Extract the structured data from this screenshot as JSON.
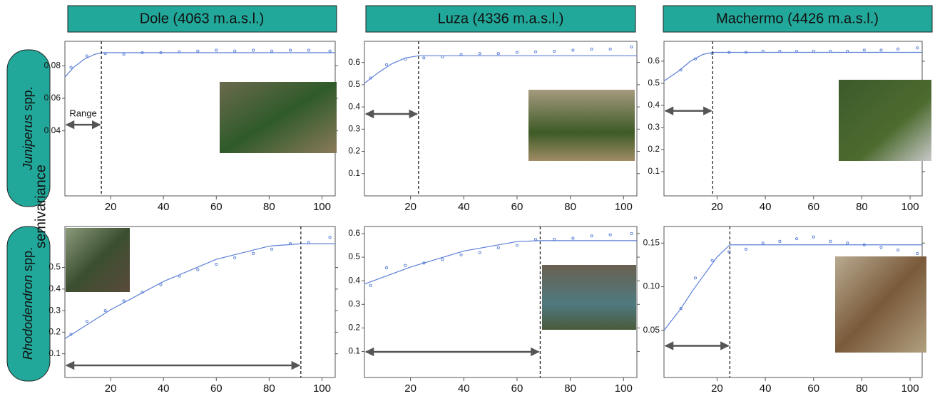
{
  "headers": [
    "Dole (4063 m.a.s.l.)",
    "Luza (4336 m.a.s.l.)",
    "Machermo (4426 m.a.s.l.)"
  ],
  "row_labels": [
    {
      "genus": "Juniperus",
      "rest": "spp."
    },
    {
      "genus": "Rhododendron",
      "rest": "spp."
    }
  ],
  "y_label": "semivariance",
  "chart_data": [
    {
      "type": "semivariogram",
      "annotation": "Range",
      "range": 16.5,
      "x": [
        5,
        11,
        18,
        25,
        32,
        39,
        46,
        53,
        60,
        67,
        74,
        81,
        88,
        95,
        103
      ],
      "values": [
        0.079,
        0.086,
        0.0875,
        0.087,
        0.088,
        0.088,
        0.0885,
        0.089,
        0.0895,
        0.089,
        0.0895,
        0.089,
        0.0895,
        0.0895,
        0.089
      ],
      "fit_x": [
        2.7,
        6,
        10,
        14,
        16.5,
        105
      ],
      "fit_values": [
        0.073,
        0.079,
        0.084,
        0.087,
        0.088,
        0.088
      ],
      "xlim": [
        2.7,
        105
      ],
      "ylim": [
        0,
        0.095
      ],
      "xticks": [
        20,
        40,
        60,
        80,
        100
      ],
      "yticks": [
        0.04,
        0.06,
        0.08
      ],
      "color": "#5b7fd6"
    },
    {
      "type": "semivariogram",
      "range": 23,
      "x": [
        5,
        11,
        18,
        25,
        32,
        39,
        46,
        53,
        60,
        67,
        74,
        81,
        88,
        95,
        103
      ],
      "values": [
        0.53,
        0.59,
        0.615,
        0.62,
        0.625,
        0.635,
        0.64,
        0.64,
        0.645,
        0.648,
        0.65,
        0.655,
        0.66,
        0.66,
        0.67
      ],
      "fit_x": [
        2.7,
        8,
        13,
        18,
        23,
        105
      ],
      "fit_values": [
        0.506,
        0.555,
        0.594,
        0.62,
        0.63,
        0.63
      ],
      "xlim": [
        2.7,
        105
      ],
      "ylim": [
        0,
        0.695
      ],
      "xticks": [
        20,
        40,
        60,
        80,
        100
      ],
      "yticks": [
        0.1,
        0.2,
        0.3,
        0.4,
        0.5,
        0.6
      ],
      "color": "#5b7fd6"
    },
    {
      "type": "semivariogram",
      "range": 18.2,
      "x": [
        5,
        11,
        18,
        25,
        32,
        39,
        46,
        53,
        60,
        67,
        74,
        81,
        88,
        95,
        103
      ],
      "values": [
        0.56,
        0.61,
        0.635,
        0.64,
        0.64,
        0.645,
        0.645,
        0.645,
        0.645,
        0.645,
        0.645,
        0.65,
        0.65,
        0.655,
        0.66
      ],
      "fit_x": [
        -2,
        4,
        9,
        14,
        18.2,
        105
      ],
      "fit_values": [
        0.51,
        0.555,
        0.6,
        0.63,
        0.64,
        0.64
      ],
      "xlim": [
        -2,
        105
      ],
      "ylim": [
        -0.01,
        0.69
      ],
      "xticks": [
        20,
        40,
        60,
        80,
        100
      ],
      "yticks": [
        0.1,
        0.2,
        0.3,
        0.4,
        0.5,
        0.6
      ],
      "color": "#5b7fd6"
    },
    {
      "type": "semivariogram",
      "range": 92,
      "x": [
        5,
        11,
        18,
        25,
        32,
        39,
        46,
        53,
        60,
        67,
        74,
        81,
        88,
        95,
        103
      ],
      "values": [
        0.19,
        0.25,
        0.3,
        0.345,
        0.385,
        0.42,
        0.46,
        0.49,
        0.515,
        0.545,
        0.565,
        0.585,
        0.61,
        0.615,
        0.64
      ],
      "fit_x": [
        2.7,
        20,
        40,
        60,
        80,
        92,
        105
      ],
      "fit_values": [
        0.17,
        0.304,
        0.435,
        0.538,
        0.599,
        0.61,
        0.61
      ],
      "xlim": [
        2.7,
        105
      ],
      "ylim": [
        -0.01,
        0.69
      ],
      "xticks": [
        20,
        40,
        60,
        80,
        100
      ],
      "yticks": [
        0.1,
        0.2,
        0.3,
        0.4,
        0.5
      ],
      "color": "#5b7fd6"
    },
    {
      "type": "semivariogram",
      "range": 68.7,
      "x": [
        5,
        11,
        18,
        25,
        32,
        39,
        46,
        53,
        60,
        67,
        74,
        81,
        88,
        95,
        103
      ],
      "values": [
        0.38,
        0.455,
        0.465,
        0.475,
        0.49,
        0.51,
        0.52,
        0.54,
        0.55,
        0.575,
        0.575,
        0.58,
        0.59,
        0.595,
        0.6
      ],
      "fit_x": [
        2.7,
        20,
        40,
        60,
        68.7,
        105
      ],
      "fit_values": [
        0.386,
        0.458,
        0.526,
        0.566,
        0.57,
        0.57
      ],
      "xlim": [
        2.7,
        105
      ],
      "ylim": [
        -0.01,
        0.63
      ],
      "xticks": [
        20,
        40,
        60,
        80,
        100
      ],
      "yticks": [
        0.1,
        0.2,
        0.3,
        0.4,
        0.5,
        0.6
      ],
      "color": "#5b7fd6"
    },
    {
      "type": "semivariogram",
      "range": 25.3,
      "x": [
        5,
        11,
        18,
        25,
        32,
        39,
        46,
        53,
        60,
        67,
        74,
        81,
        88,
        95,
        103
      ],
      "values": [
        0.075,
        0.11,
        0.13,
        0.14,
        0.143,
        0.15,
        0.152,
        0.155,
        0.157,
        0.152,
        0.15,
        0.148,
        0.145,
        0.142,
        0.138
      ],
      "fit_x": [
        -2,
        5,
        10,
        15,
        20,
        25.3,
        105
      ],
      "fit_values": [
        0.05,
        0.075,
        0.096,
        0.115,
        0.134,
        0.148,
        0.148
      ],
      "xlim": [
        -2,
        105
      ],
      "ylim": [
        -0.004,
        0.169
      ],
      "xticks": [
        20,
        40,
        60,
        80,
        100
      ],
      "yticks": [
        0.05,
        {
          "value": 0.1,
          "label": "0.10"
        },
        0.15
      ],
      "color": "#5b7fd6"
    }
  ]
}
